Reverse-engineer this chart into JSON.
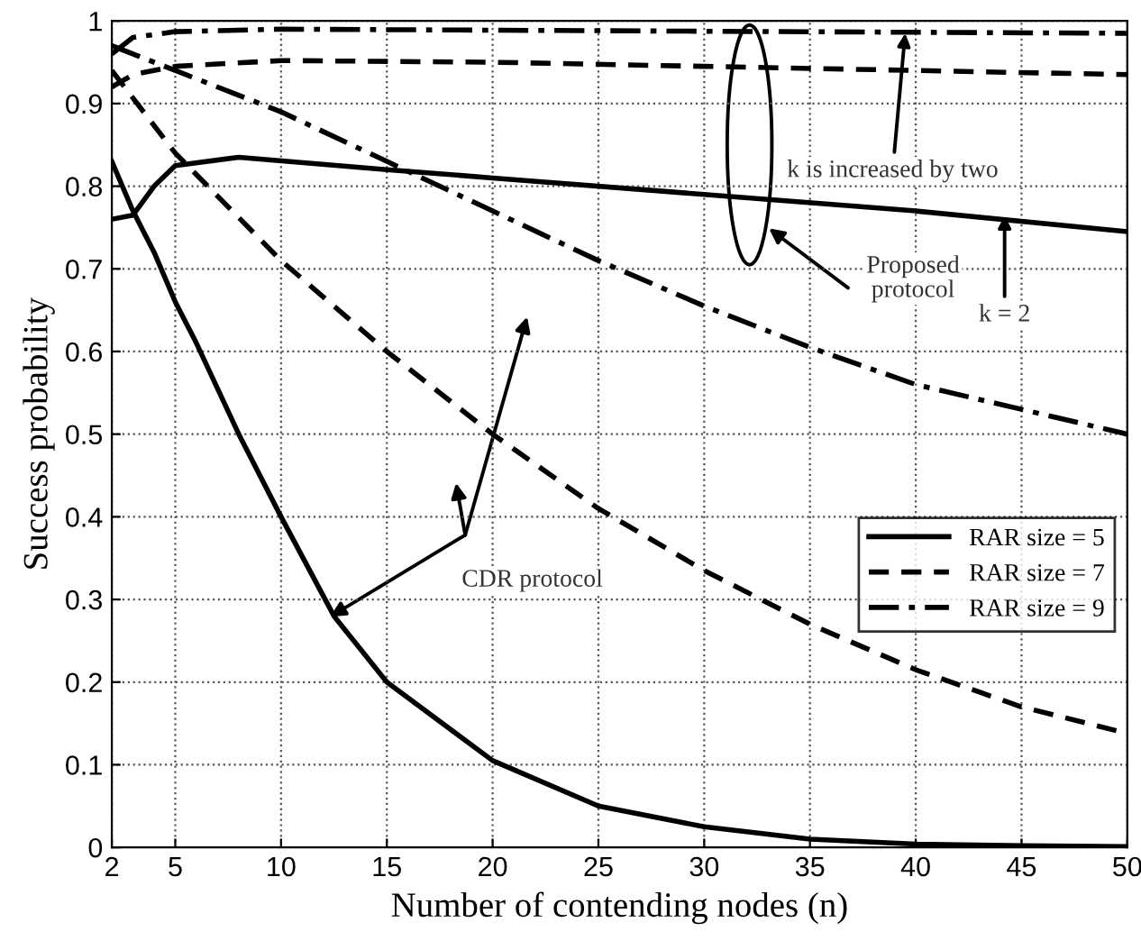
{
  "chart_data": {
    "type": "line",
    "xlabel": "Number of contending nodes (n)",
    "ylabel": "Success probability",
    "xlim": [
      2,
      50
    ],
    "xticks": [
      2,
      5,
      10,
      15,
      20,
      25,
      30,
      35,
      40,
      45,
      50
    ],
    "ylim": [
      0,
      1
    ],
    "yticks": [
      0,
      0.1,
      0.2,
      0.3,
      0.4,
      0.5,
      0.6,
      0.7,
      0.8,
      0.9,
      1
    ],
    "grid": true,
    "legend": "right",
    "series": [
      {
        "name": "RAR size = 5",
        "color": "#000000",
        "line_style": "solid",
        "x": [
          2,
          3,
          4,
          5,
          8,
          15,
          20,
          30,
          40,
          50
        ],
        "values": [
          0.76,
          0.765,
          0.8,
          0.825,
          0.835,
          0.82,
          0.81,
          0.79,
          0.77,
          0.745
        ]
      },
      {
        "name": "RAR size = 7",
        "color": "#000000",
        "line_style": "dashed",
        "x": [
          2,
          3,
          5,
          10,
          20,
          30,
          40,
          50
        ],
        "values": [
          0.92,
          0.935,
          0.945,
          0.952,
          0.95,
          0.945,
          0.94,
          0.935
        ]
      },
      {
        "name": "RAR size = 9",
        "color": "#000000",
        "line_style": "dashdot",
        "x": [
          2,
          3,
          5,
          10,
          50
        ],
        "values": [
          0.96,
          0.98,
          0.987,
          0.99,
          0.985
        ]
      },
      {
        "color": "#000000",
        "line_style": "solid",
        "x": [
          2,
          3,
          4,
          5,
          6,
          8,
          10,
          12.5,
          15,
          20,
          25,
          30,
          35,
          40,
          45,
          50
        ],
        "values": [
          0.83,
          0.77,
          0.72,
          0.66,
          0.61,
          0.5,
          0.4,
          0.28,
          0.2,
          0.105,
          0.05,
          0.025,
          0.01,
          0.004,
          0.002,
          0.001
        ]
      },
      {
        "color": "#000000",
        "line_style": "dashed",
        "x": [
          2,
          5,
          10,
          15,
          20,
          25,
          30,
          35,
          40,
          45,
          50
        ],
        "values": [
          0.94,
          0.84,
          0.71,
          0.6,
          0.5,
          0.41,
          0.335,
          0.27,
          0.215,
          0.17,
          0.138
        ]
      },
      {
        "color": "#000000",
        "line_style": "dashdot",
        "x": [
          2,
          5,
          10,
          15,
          20,
          25,
          30,
          35,
          40,
          45,
          50
        ],
        "values": [
          0.97,
          0.94,
          0.89,
          0.83,
          0.77,
          0.71,
          0.655,
          0.605,
          0.56,
          0.53,
          0.5
        ]
      }
    ],
    "annotations": [
      {
        "text": "k is increased by two",
        "x": 39.5,
        "y": 0.985
      },
      "Proposed\nprotocol",
      {
        "text": "k = 2",
        "x": 44.2,
        "y": 0.765
      },
      "CDR protocol"
    ]
  }
}
